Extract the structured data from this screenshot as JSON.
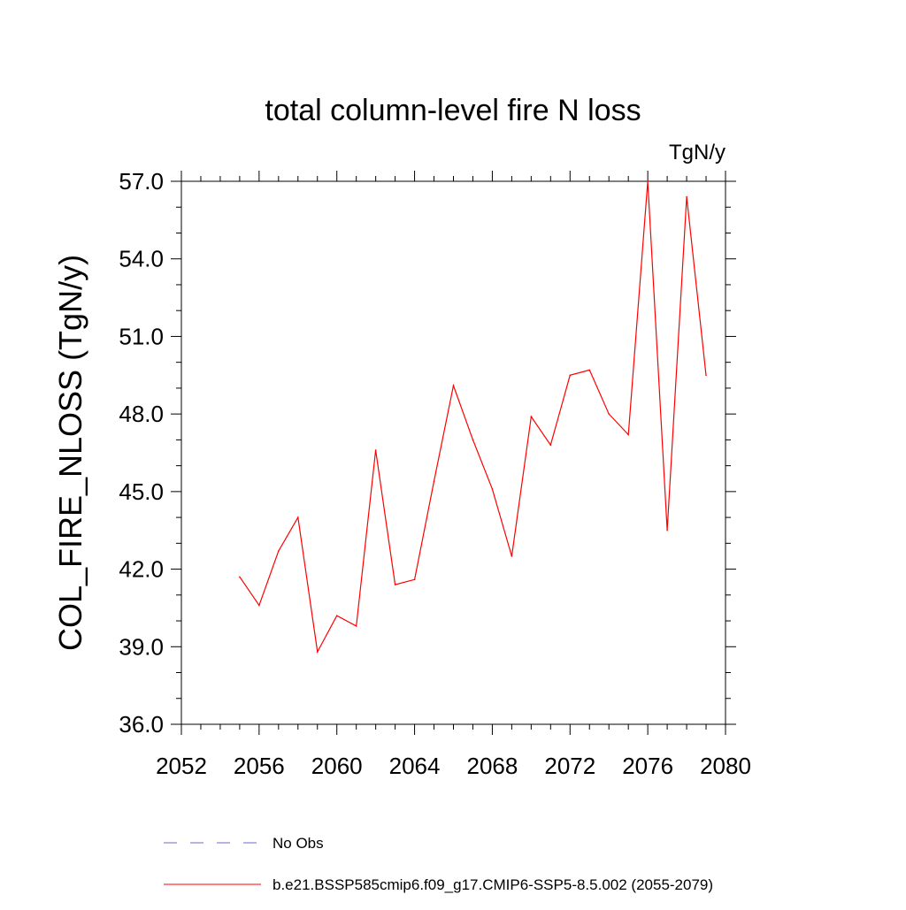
{
  "chart_data": {
    "type": "line",
    "title": "total column-level fire N loss",
    "units_label": "TgN/y",
    "xlabel": "",
    "ylabel": "COL_FIRE_NLOSS  (TgN/y)",
    "xlim": [
      2052,
      2080
    ],
    "ylim": [
      36.0,
      57.0
    ],
    "x_ticks": [
      2052,
      2056,
      2060,
      2064,
      2068,
      2072,
      2076,
      2080
    ],
    "x_tick_labels": [
      "2052",
      "2056",
      "2060",
      "2064",
      "2068",
      "2072",
      "2076",
      "2080"
    ],
    "y_ticks": [
      36.0,
      39.0,
      42.0,
      45.0,
      48.0,
      51.0,
      54.0,
      57.0
    ],
    "y_tick_labels": [
      "36.0",
      "39.0",
      "42.0",
      "45.0",
      "48.0",
      "51.0",
      "54.0",
      "57.0"
    ],
    "grid": false,
    "legend_position": "bottom",
    "series": [
      {
        "name": "b.e21.BSSP585cmip6.f09_g17.CMIP6-SSP5-8.5.002 (2055-2079)",
        "color": "#ff0000",
        "style": "solid",
        "x": [
          2055,
          2056,
          2057,
          2058,
          2059,
          2060,
          2061,
          2062,
          2063,
          2064,
          2065,
          2066,
          2067,
          2068,
          2069,
          2070,
          2071,
          2072,
          2073,
          2074,
          2075,
          2076,
          2077,
          2078,
          2079
        ],
        "y": [
          41.7,
          40.6,
          42.7,
          44.0,
          38.8,
          40.2,
          39.8,
          46.6,
          41.4,
          41.6,
          45.4,
          49.1,
          47.0,
          45.1,
          42.5,
          47.9,
          46.8,
          49.5,
          49.7,
          48.0,
          47.2,
          57.0,
          43.5,
          56.4,
          49.5
        ]
      }
    ],
    "legend": [
      {
        "label": "No Obs",
        "color": "#6a6ad0",
        "style": "dashed"
      },
      {
        "label": "b.e21.BSSP585cmip6.f09_g17.CMIP6-SSP5-8.5.002 (2055-2079)",
        "color": "#ff0000",
        "style": "solid"
      }
    ]
  }
}
